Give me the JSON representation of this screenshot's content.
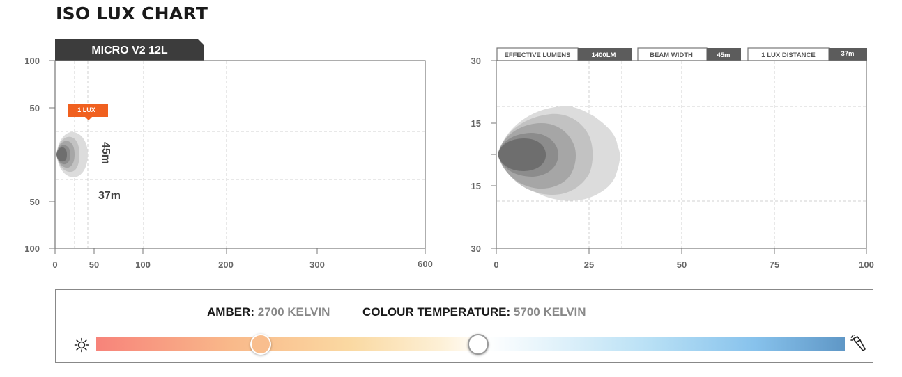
{
  "title": "ISO LUX CHART",
  "product_tab": "MICRO V2 12L",
  "lux_marker_label": "1 LUX",
  "side_distance_label": "45m",
  "front_distance_label": "37m",
  "stats": [
    {
      "label": "EFFECTIVE LUMENS",
      "value": "1400LM"
    },
    {
      "label": "BEAM WIDTH",
      "value": "45m"
    },
    {
      "label": "1 LUX DISTANCE",
      "value": "37m"
    }
  ],
  "temperature": {
    "amber_label": "AMBER:",
    "amber_value": "2700 KELVIN",
    "colour_label": "COLOUR TEMPERATURE:",
    "colour_value": "5700 KELVIN",
    "amber_position": 0.22,
    "colour_position": 0.51,
    "gradient_colors": [
      "#f7837a",
      "#f9b98a",
      "#fad9a2",
      "#ffffff",
      "#b8e0f5",
      "#5f97c6"
    ],
    "left_icon": "sun-icon",
    "right_icon": "flashlight-icon"
  },
  "chart_data": [
    {
      "type": "area",
      "name": "iso-lux-top-view",
      "x_ticks": [
        "0",
        "50",
        "100",
        "200",
        "300",
        "600"
      ],
      "y_ticks": [
        "100",
        "50",
        "50",
        "100"
      ],
      "y_tick_values": [
        100,
        50,
        -50,
        -100
      ],
      "x_tick_values": [
        0,
        50,
        100,
        200,
        300,
        600
      ],
      "beam_reach": 37,
      "beam_half_width": 22.5,
      "grid": true,
      "contour_colors": [
        "#dcdcdc",
        "#c2c2c2",
        "#a6a6a6",
        "#8c8c8c",
        "#6e6e6e"
      ]
    },
    {
      "type": "area",
      "name": "iso-lux-zoomed",
      "x_ticks": [
        "0",
        "25",
        "50",
        "75",
        "100"
      ],
      "x_tick_values": [
        0,
        25,
        50,
        75,
        100
      ],
      "y_ticks": [
        "30",
        "15",
        "15",
        "30"
      ],
      "y_tick_values": [
        30,
        15,
        -15,
        -30
      ],
      "xlim": [
        0,
        100
      ],
      "ylim": [
        -30,
        30
      ],
      "contour_reach": [
        33,
        25,
        21,
        16,
        13
      ],
      "contour_colors": [
        "#dcdcdc",
        "#c2c2c2",
        "#a6a6a6",
        "#8c8c8c",
        "#6e6e6e"
      ],
      "grid": true
    }
  ]
}
